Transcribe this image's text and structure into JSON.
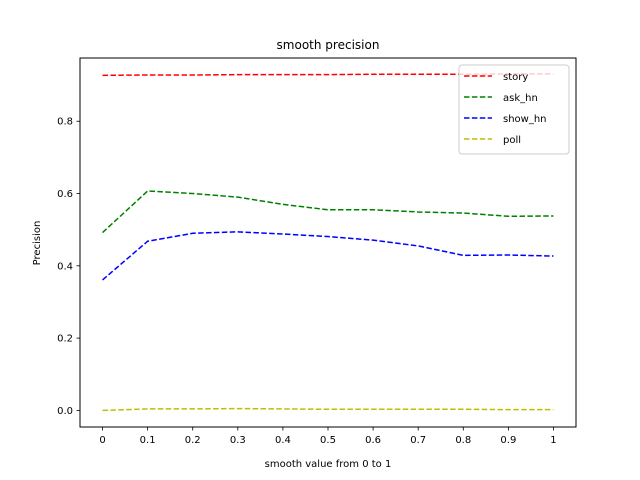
{
  "chart_data": {
    "type": "line",
    "title": "smooth precision",
    "xlabel": "smooth value from 0 to 1",
    "ylabel": "Precision",
    "x": [
      0,
      0.1,
      0.2,
      0.3,
      0.4,
      0.5,
      0.6,
      0.7,
      0.8,
      0.9,
      1
    ],
    "x_tick_labels": [
      "0",
      "0.1",
      "0.2",
      "0.3",
      "0.4",
      "0.5",
      "0.6",
      "0.7",
      "0.8",
      "0.9",
      "1"
    ],
    "y_ticks": [
      0.0,
      0.2,
      0.4,
      0.6,
      0.8
    ],
    "y_tick_labels": [
      "0.0",
      "0.2",
      "0.4",
      "0.6",
      "0.8"
    ],
    "xlim": [
      -0.05,
      1.05
    ],
    "ylim": [
      -0.046,
      0.975
    ],
    "grid": false,
    "legend_position": "top-right",
    "line_style": "dashed",
    "series": [
      {
        "name": "story",
        "color": "#ff0000",
        "values": [
          0.927,
          0.928,
          0.928,
          0.929,
          0.929,
          0.929,
          0.93,
          0.93,
          0.93,
          0.931,
          0.931
        ]
      },
      {
        "name": "ask_hn",
        "color": "#008000",
        "values": [
          0.492,
          0.607,
          0.6,
          0.59,
          0.57,
          0.555,
          0.555,
          0.549,
          0.546,
          0.537,
          0.538
        ]
      },
      {
        "name": "show_hn",
        "color": "#0000ff",
        "values": [
          0.361,
          0.468,
          0.49,
          0.494,
          0.488,
          0.481,
          0.471,
          0.455,
          0.429,
          0.43,
          0.427
        ]
      },
      {
        "name": "poll",
        "color": "#bfbf00",
        "values": [
          0.0,
          0.004,
          0.004,
          0.005,
          0.004,
          0.003,
          0.003,
          0.003,
          0.003,
          0.002,
          0.002
        ]
      }
    ]
  }
}
